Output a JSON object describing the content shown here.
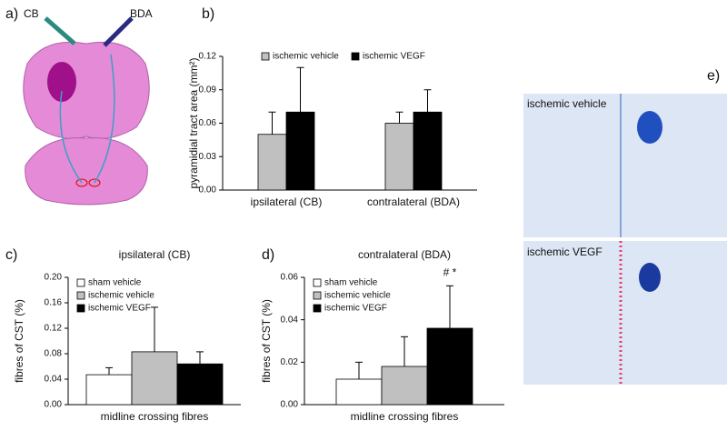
{
  "panel_labels": [
    "a)",
    "b)",
    "c)",
    "d)",
    "e)"
  ],
  "illustration": {
    "tracer_labels": [
      "CB",
      "BDA"
    ]
  },
  "micrographs": {
    "labels": [
      "ischemic vehicle",
      "ischemic VEGF"
    ]
  },
  "chart_data": [
    {
      "type": "bar",
      "y_label": "pyramidial tract area (mm²)",
      "categories": [
        "ipsilateral (CB)",
        "contralateral (BDA)"
      ],
      "series": [
        {
          "name": "ischemic vehicle",
          "color": "#c0c0c0",
          "values": [
            0.05,
            0.06
          ],
          "errors": [
            0.02,
            0.01
          ]
        },
        {
          "name": "ischemic VEGF",
          "color": "#000000",
          "values": [
            0.07,
            0.07
          ],
          "errors": [
            0.04,
            0.02
          ]
        }
      ],
      "ylim": [
        0,
        0.12
      ],
      "yticks": [
        {
          "value": 0,
          "label": "0.00"
        },
        0.03,
        0.06,
        0.09,
        0.12
      ],
      "legend": "top"
    },
    {
      "type": "bar",
      "title": "ipsilateral (CB)",
      "y_label": "fibres of CST (%)",
      "categories": [
        "midline crossing fibres"
      ],
      "series": [
        {
          "name": "sham vehicle",
          "color": "#ffffff",
          "values": [
            0.047
          ],
          "errors": [
            0.011
          ]
        },
        {
          "name": "ischemic vehicle",
          "color": "#c0c0c0",
          "values": [
            0.083
          ],
          "errors": [
            0.07
          ]
        },
        {
          "name": "ischemic VEGF",
          "color": "#000000",
          "values": [
            0.064
          ],
          "errors": [
            0.019
          ]
        }
      ],
      "ylim": [
        0,
        0.2
      ],
      "yticks": [
        {
          "value": 0,
          "label": "0.00"
        },
        0.04,
        0.08,
        0.12,
        0.16,
        {
          "value": 0.2,
          "label": "0.20"
        }
      ],
      "legend": "upper left"
    },
    {
      "type": "bar",
      "title": "contralateral (BDA)",
      "y_label": "fibres of CST (%)",
      "categories": [
        "midline crossing fibres"
      ],
      "series": [
        {
          "name": "sham vehicle",
          "color": "#ffffff",
          "values": [
            0.012
          ],
          "errors": [
            0.008
          ]
        },
        {
          "name": "ischemic vehicle",
          "color": "#c0c0c0",
          "values": [
            0.018
          ],
          "errors": [
            0.014
          ]
        },
        {
          "name": "ischemic VEGF",
          "color": "#000000",
          "values": [
            0.036
          ],
          "errors": [
            0.02
          ]
        }
      ],
      "ylim": [
        0,
        0.06
      ],
      "yticks": [
        {
          "value": 0,
          "label": "0.00"
        },
        0.02,
        0.04,
        0.06
      ],
      "legend": "upper left",
      "annotation": "# *"
    }
  ]
}
